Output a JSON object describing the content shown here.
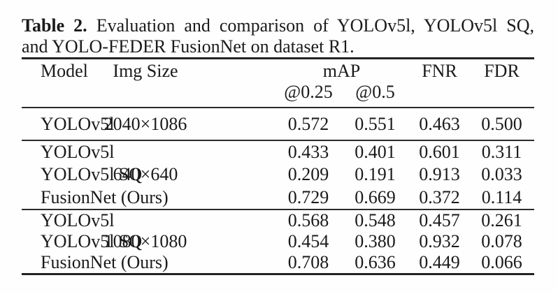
{
  "caption": {
    "label": "Table 2.",
    "line1_rest": "Evaluation and comparison of YOLOv5l, YOLOv5l SQ,",
    "line2": "and YOLO-FEDER FusionNet on dataset R1."
  },
  "table": {
    "headers": {
      "model": "Model",
      "img_size": "Img Size",
      "map": "mAP",
      "map_sub1": "@0.25",
      "map_sub2": "@0.5",
      "fnr": "FNR",
      "fdr": "FDR"
    },
    "groups": [
      {
        "img_size": "2040×1086",
        "rows": [
          {
            "model": "YOLOv5l",
            "map25": "0.572",
            "map50": "0.551",
            "fnr": "0.463",
            "fdr": "0.500"
          }
        ]
      },
      {
        "img_size": "640×640",
        "rows": [
          {
            "model": "YOLOv5l",
            "map25": "0.433",
            "map50": "0.401",
            "fnr": "0.601",
            "fdr": "0.311"
          },
          {
            "model": "YOLOv5l SQ",
            "map25": "0.209",
            "map50": "0.191",
            "fnr": "0.913",
            "fdr": "0.033"
          },
          {
            "model": "FusionNet (Ours)",
            "map25": "0.729",
            "map50": "0.669",
            "fnr": "0.372",
            "fdr": "0.114"
          }
        ]
      },
      {
        "img_size": "1080×1080",
        "rows": [
          {
            "model": "YOLOv5l",
            "map25": "0.568",
            "map50": "0.548",
            "fnr": "0.457",
            "fdr": "0.261"
          },
          {
            "model": "YOLOv5l SQ",
            "map25": "0.454",
            "map50": "0.380",
            "fnr": "0.932",
            "fdr": "0.078"
          },
          {
            "model": "FusionNet (Ours)",
            "map25": "0.708",
            "map50": "0.636",
            "fnr": "0.449",
            "fdr": "0.066"
          }
        ]
      }
    ]
  }
}
